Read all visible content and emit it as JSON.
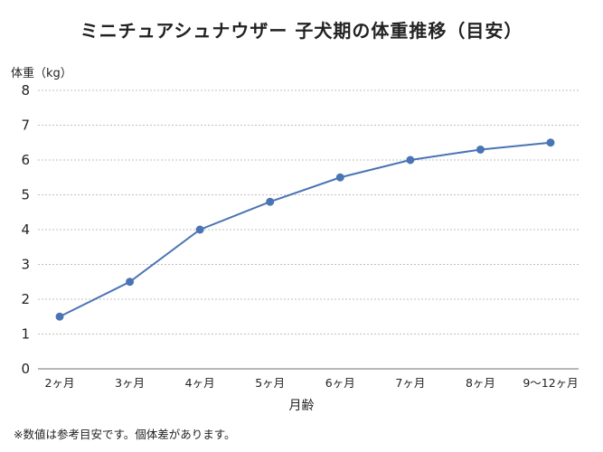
{
  "chart_data": {
    "type": "line",
    "title": "ミニチュアシュナウザー 子犬期の体重推移（目安）",
    "xlabel": "月齢",
    "ylabel": "体重（kg）",
    "categories": [
      "2ヶ月",
      "3ヶ月",
      "4ヶ月",
      "5ヶ月",
      "6ヶ月",
      "7ヶ月",
      "8ヶ月",
      "9〜12ヶ月"
    ],
    "series": [
      {
        "values": [
          1.5,
          2.5,
          4.0,
          4.8,
          5.5,
          6.0,
          6.3,
          6.5
        ]
      }
    ],
    "ylim": [
      0,
      8
    ],
    "yticks": [
      0,
      1,
      2,
      3,
      4,
      5,
      6,
      7,
      8
    ],
    "grid": true,
    "colors": {
      "line": "#4a74b4",
      "marker": "#4a74b4",
      "grid": "#bfbfbf",
      "axis": "#8c8c8c"
    }
  },
  "footnote": "※数値は参考目安です。個体差があります。"
}
